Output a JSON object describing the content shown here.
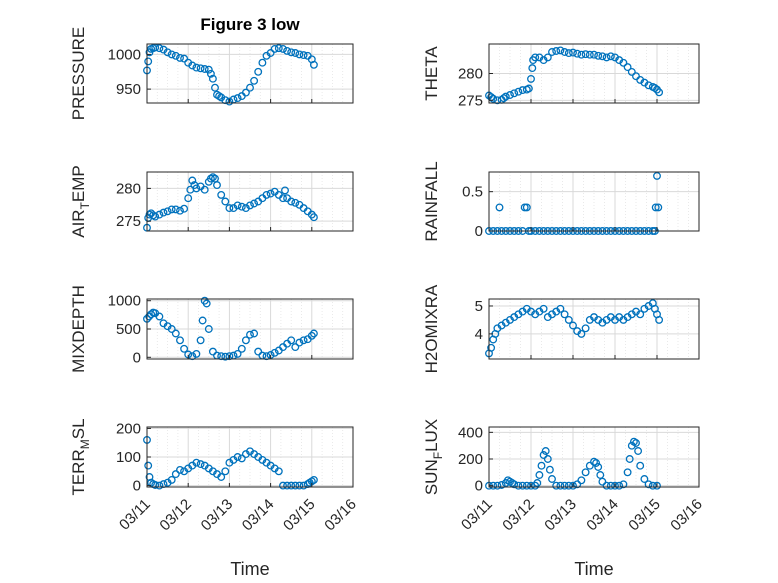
{
  "figure": {
    "title": "Figure 3 low",
    "marker_color": "#0072BD",
    "grid_color": "#d9d9d9",
    "axis_color": "#262626"
  },
  "chart_data": [
    {
      "type": "scatter",
      "panel": "pressure",
      "title": "Figure 3 low",
      "xlabel": "",
      "ylabel": "PRESSURE",
      "xlim": [
        0,
        5
      ],
      "ylim": [
        930,
        1015
      ],
      "xticks": [
        "03/11",
        "03/12",
        "03/13",
        "03/14",
        "03/15",
        "03/16"
      ],
      "yticks": [
        950,
        1000
      ],
      "grid": true,
      "x": [
        0.0,
        0.03,
        0.06,
        0.1,
        0.15,
        0.2,
        0.3,
        0.4,
        0.5,
        0.6,
        0.7,
        0.8,
        0.9,
        1.0,
        1.1,
        1.2,
        1.3,
        1.4,
        1.5,
        1.55,
        1.6,
        1.65,
        1.7,
        1.75,
        1.8,
        1.9,
        2.0,
        2.1,
        2.2,
        2.3,
        2.4,
        2.5,
        2.6,
        2.7,
        2.8,
        2.9,
        3.0,
        3.1,
        3.2,
        3.3,
        3.4,
        3.5,
        3.6,
        3.7,
        3.8,
        3.9,
        4.0,
        4.05
      ],
      "y": [
        977,
        990,
        1003,
        1008,
        1009,
        1010,
        1009,
        1007,
        1003,
        1000,
        998,
        995,
        994,
        988,
        984,
        981,
        980,
        979,
        978,
        972,
        965,
        952,
        942,
        940,
        938,
        934,
        932,
        935,
        937,
        940,
        945,
        952,
        962,
        975,
        988,
        998,
        1002,
        1008,
        1009,
        1008,
        1005,
        1003,
        1002,
        1000,
        999,
        998,
        993,
        985
      ]
    },
    {
      "type": "scatter",
      "panel": "theta",
      "xlabel": "",
      "ylabel": "THETA",
      "xlim": [
        0,
        5
      ],
      "ylim": [
        274.5,
        285.5
      ],
      "xticks": [
        "03/11",
        "03/12",
        "03/13",
        "03/14",
        "03/15",
        "03/16"
      ],
      "yticks": [
        275,
        280
      ],
      "grid": true,
      "x": [
        0.0,
        0.05,
        0.1,
        0.2,
        0.3,
        0.35,
        0.4,
        0.5,
        0.6,
        0.7,
        0.8,
        0.9,
        0.95,
        1.0,
        1.03,
        1.05,
        1.1,
        1.2,
        1.3,
        1.4,
        1.5,
        1.6,
        1.7,
        1.8,
        1.9,
        2.0,
        2.1,
        2.2,
        2.3,
        2.4,
        2.5,
        2.6,
        2.7,
        2.8,
        2.9,
        3.0,
        3.1,
        3.2,
        3.3,
        3.4,
        3.5,
        3.6,
        3.7,
        3.8,
        3.9,
        3.95,
        4.0,
        4.05
      ],
      "y": [
        275.9,
        275.6,
        275.3,
        275.0,
        275.1,
        275.4,
        275.7,
        276.0,
        276.3,
        276.6,
        276.9,
        277.0,
        277.2,
        279.0,
        281.0,
        282.5,
        283.0,
        283.0,
        282.5,
        283.0,
        284.0,
        284.2,
        284.3,
        284.0,
        283.8,
        283.9,
        283.7,
        283.5,
        283.6,
        283.5,
        283.5,
        283.3,
        283.2,
        283.0,
        283.2,
        283.0,
        282.5,
        282.0,
        281.2,
        280.3,
        279.5,
        278.8,
        278.3,
        277.8,
        277.5,
        277.3,
        277.0,
        276.5
      ]
    },
    {
      "type": "scatter",
      "panel": "air_temp",
      "xlabel": "",
      "ylabel": "AIR_TEMP",
      "xlim": [
        0,
        5
      ],
      "ylim": [
        273.5,
        282.5
      ],
      "xticks": [
        "03/11",
        "03/12",
        "03/13",
        "03/14",
        "03/15",
        "03/16"
      ],
      "yticks": [
        275,
        280
      ],
      "grid": true,
      "x": [
        0.0,
        0.03,
        0.06,
        0.1,
        0.15,
        0.2,
        0.3,
        0.4,
        0.5,
        0.6,
        0.7,
        0.8,
        0.9,
        1.0,
        1.05,
        1.1,
        1.15,
        1.2,
        1.3,
        1.4,
        1.5,
        1.55,
        1.6,
        1.65,
        1.7,
        1.8,
        1.9,
        2.0,
        2.1,
        2.2,
        2.3,
        2.4,
        2.5,
        2.6,
        2.7,
        2.8,
        2.9,
        3.0,
        3.1,
        3.2,
        3.3,
        3.35,
        3.4,
        3.5,
        3.6,
        3.7,
        3.8,
        3.9,
        4.0,
        4.05
      ],
      "y": [
        274.0,
        275.5,
        276.0,
        276.2,
        275.9,
        275.7,
        276.0,
        276.3,
        276.5,
        276.8,
        276.8,
        276.6,
        276.9,
        278.5,
        279.8,
        281.2,
        280.5,
        280.0,
        280.3,
        279.8,
        281.0,
        281.5,
        281.7,
        281.5,
        280.5,
        279.0,
        278.0,
        277.0,
        277.0,
        277.4,
        277.2,
        277.0,
        277.4,
        277.7,
        278.0,
        278.5,
        279.0,
        279.2,
        279.5,
        279.0,
        278.5,
        279.7,
        278.5,
        278.0,
        277.8,
        277.5,
        277.0,
        276.5,
        276.0,
        275.6
      ]
    },
    {
      "type": "scatter",
      "panel": "rainfall",
      "xlabel": "",
      "ylabel": "RAINFALL",
      "xlim": [
        0,
        5
      ],
      "ylim": [
        0,
        0.75
      ],
      "xticks": [
        "03/11",
        "03/12",
        "03/13",
        "03/14",
        "03/15",
        "03/16"
      ],
      "yticks": [
        0,
        0.5
      ],
      "grid": true,
      "x": [
        0.0,
        0.1,
        0.2,
        0.25,
        0.3,
        0.4,
        0.5,
        0.6,
        0.7,
        0.8,
        0.85,
        0.9,
        0.95,
        1.0,
        1.1,
        1.2,
        1.3,
        1.4,
        1.5,
        1.6,
        1.7,
        1.8,
        1.9,
        2.0,
        2.1,
        2.2,
        2.3,
        2.4,
        2.5,
        2.6,
        2.7,
        2.8,
        2.9,
        3.0,
        3.1,
        3.2,
        3.3,
        3.4,
        3.5,
        3.6,
        3.7,
        3.8,
        3.9,
        3.95,
        3.97,
        4.0,
        4.03
      ],
      "y": [
        0,
        0,
        0,
        0.3,
        0,
        0,
        0,
        0,
        0,
        0,
        0.3,
        0.3,
        0,
        0,
        0,
        0,
        0,
        0,
        0,
        0,
        0,
        0,
        0,
        0,
        0,
        0,
        0,
        0,
        0,
        0,
        0,
        0,
        0,
        0,
        0,
        0,
        0,
        0,
        0,
        0,
        0,
        0,
        0,
        0,
        0.3,
        0.7,
        0.3
      ]
    },
    {
      "type": "scatter",
      "panel": "mixdepth",
      "xlabel": "",
      "ylabel": "MIXDEPTH",
      "xlim": [
        0,
        5
      ],
      "ylim": [
        -30,
        1030
      ],
      "xticks": [
        "03/11",
        "03/12",
        "03/13",
        "03/14",
        "03/15",
        "03/16"
      ],
      "yticks": [
        0,
        500,
        1000
      ],
      "grid": true,
      "x": [
        0.0,
        0.05,
        0.1,
        0.15,
        0.2,
        0.3,
        0.4,
        0.5,
        0.6,
        0.7,
        0.8,
        0.9,
        1.0,
        1.1,
        1.2,
        1.3,
        1.35,
        1.4,
        1.45,
        1.5,
        1.6,
        1.7,
        1.8,
        1.9,
        2.0,
        2.1,
        2.2,
        2.3,
        2.4,
        2.5,
        2.6,
        2.7,
        2.8,
        2.9,
        3.0,
        3.1,
        3.2,
        3.3,
        3.4,
        3.5,
        3.6,
        3.7,
        3.8,
        3.9,
        4.0,
        4.05
      ],
      "y": [
        680,
        720,
        760,
        790,
        780,
        720,
        600,
        550,
        500,
        420,
        300,
        150,
        50,
        20,
        60,
        300,
        650,
        1000,
        950,
        500,
        100,
        30,
        20,
        10,
        20,
        30,
        60,
        150,
        300,
        400,
        420,
        100,
        30,
        20,
        40,
        80,
        120,
        180,
        240,
        300,
        180,
        260,
        300,
        320,
        380,
        420
      ]
    },
    {
      "type": "scatter",
      "panel": "h2omixra",
      "xlabel": "",
      "ylabel": "H2OMIXRA",
      "xlim": [
        0,
        5
      ],
      "ylim": [
        3.1,
        5.25
      ],
      "xticks": [
        "03/11",
        "03/12",
        "03/13",
        "03/14",
        "03/15",
        "03/16"
      ],
      "yticks": [
        4,
        5
      ],
      "grid": true,
      "x": [
        0.0,
        0.05,
        0.1,
        0.15,
        0.2,
        0.3,
        0.4,
        0.5,
        0.6,
        0.7,
        0.8,
        0.9,
        1.0,
        1.1,
        1.2,
        1.3,
        1.4,
        1.5,
        1.6,
        1.7,
        1.8,
        1.9,
        2.0,
        2.1,
        2.2,
        2.3,
        2.4,
        2.5,
        2.6,
        2.7,
        2.8,
        2.9,
        3.0,
        3.1,
        3.2,
        3.3,
        3.4,
        3.5,
        3.6,
        3.7,
        3.8,
        3.9,
        3.95,
        4.0,
        4.05
      ],
      "y": [
        3.3,
        3.5,
        3.8,
        4.0,
        4.2,
        4.3,
        4.4,
        4.5,
        4.6,
        4.7,
        4.8,
        4.9,
        4.8,
        4.7,
        4.8,
        4.9,
        4.6,
        4.7,
        4.8,
        4.9,
        4.7,
        4.5,
        4.3,
        4.1,
        4.0,
        4.2,
        4.5,
        4.6,
        4.5,
        4.4,
        4.5,
        4.6,
        4.5,
        4.6,
        4.5,
        4.6,
        4.7,
        4.8,
        4.7,
        4.9,
        5.0,
        5.1,
        4.9,
        4.7,
        4.5
      ]
    },
    {
      "type": "scatter",
      "panel": "terr_msl",
      "xlabel": "Time",
      "ylabel": "TERR_MSL",
      "xlim": [
        0,
        5
      ],
      "ylim": [
        -5,
        205
      ],
      "xticks": [
        "03/11",
        "03/12",
        "03/13",
        "03/14",
        "03/15",
        "03/16"
      ],
      "yticks": [
        0,
        100,
        200
      ],
      "grid": true,
      "x": [
        0.0,
        0.03,
        0.06,
        0.1,
        0.15,
        0.2,
        0.3,
        0.4,
        0.5,
        0.6,
        0.7,
        0.8,
        0.9,
        1.0,
        1.1,
        1.2,
        1.3,
        1.4,
        1.5,
        1.6,
        1.7,
        1.8,
        1.9,
        2.0,
        2.1,
        2.2,
        2.3,
        2.4,
        2.5,
        2.6,
        2.7,
        2.8,
        2.9,
        3.0,
        3.1,
        3.2,
        3.3,
        3.4,
        3.5,
        3.6,
        3.7,
        3.8,
        3.9,
        3.95,
        4.0,
        4.05
      ],
      "y": [
        160,
        70,
        30,
        10,
        5,
        2,
        0,
        5,
        10,
        20,
        40,
        55,
        50,
        60,
        70,
        80,
        75,
        70,
        60,
        50,
        40,
        30,
        50,
        80,
        90,
        100,
        95,
        110,
        120,
        110,
        100,
        90,
        80,
        70,
        60,
        50,
        0,
        0,
        0,
        0,
        0,
        0,
        5,
        10,
        15,
        20
      ]
    },
    {
      "type": "scatter",
      "panel": "sun_flux",
      "xlabel": "Time",
      "ylabel": "SUN_FLUX",
      "xlim": [
        0,
        5
      ],
      "ylim": [
        -10,
        440
      ],
      "xticks": [
        "03/11",
        "03/12",
        "03/13",
        "03/14",
        "03/15",
        "03/16"
      ],
      "yticks": [
        0,
        200,
        400
      ],
      "grid": true,
      "x": [
        0.0,
        0.1,
        0.2,
        0.3,
        0.4,
        0.45,
        0.5,
        0.55,
        0.6,
        0.7,
        0.8,
        0.9,
        1.0,
        1.1,
        1.15,
        1.2,
        1.25,
        1.3,
        1.35,
        1.4,
        1.45,
        1.5,
        1.6,
        1.7,
        1.8,
        1.9,
        2.0,
        2.1,
        2.2,
        2.3,
        2.4,
        2.5,
        2.55,
        2.6,
        2.65,
        2.7,
        2.8,
        2.9,
        3.0,
        3.1,
        3.2,
        3.3,
        3.35,
        3.4,
        3.45,
        3.5,
        3.55,
        3.6,
        3.7,
        3.8,
        3.9,
        4.0
      ],
      "y": [
        0,
        0,
        0,
        5,
        20,
        40,
        30,
        20,
        10,
        0,
        0,
        0,
        0,
        0,
        20,
        80,
        150,
        230,
        260,
        200,
        120,
        50,
        0,
        0,
        0,
        0,
        0,
        10,
        40,
        100,
        150,
        180,
        170,
        140,
        80,
        30,
        0,
        0,
        0,
        0,
        10,
        100,
        200,
        300,
        330,
        320,
        260,
        150,
        50,
        10,
        0,
        0
      ]
    }
  ]
}
